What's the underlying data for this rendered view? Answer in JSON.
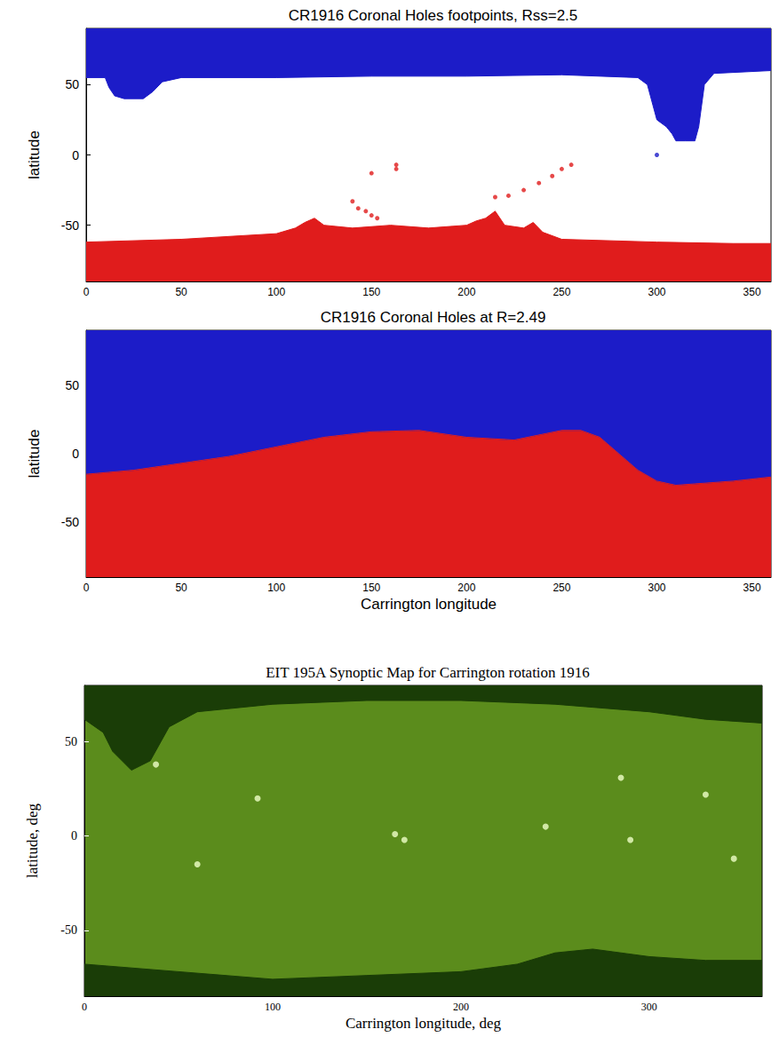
{
  "chart_data": [
    {
      "type": "area",
      "title": "CR1916 Coronal Holes footpoints, Rss=2.5",
      "ylabel": "latitude",
      "xlim": [
        0,
        360
      ],
      "xticks": [
        0,
        50,
        100,
        150,
        200,
        250,
        300,
        350
      ],
      "ylim": [
        -90,
        90
      ],
      "yticks": [
        -50,
        0,
        50
      ],
      "grid": false,
      "series": [
        {
          "type": "area",
          "color": "#1c1cc8",
          "x": [
            0,
            10,
            12,
            15,
            20,
            30,
            35,
            40,
            50,
            100,
            150,
            200,
            250,
            290,
            295,
            298,
            300,
            305,
            308,
            310,
            315,
            320,
            322,
            325,
            330,
            360
          ],
          "values": [
            55,
            55,
            48,
            42,
            40,
            40,
            45,
            52,
            55,
            55,
            56,
            56,
            57,
            55,
            50,
            35,
            25,
            20,
            15,
            10,
            10,
            10,
            20,
            50,
            58,
            60
          ]
        },
        {
          "type": "area",
          "color": "#e01c1c",
          "x": [
            0,
            50,
            100,
            110,
            115,
            120,
            125,
            140,
            160,
            180,
            200,
            205,
            210,
            215,
            220,
            230,
            235,
            240,
            250,
            300,
            340,
            360
          ],
          "values": [
            -62,
            -60,
            -56,
            -52,
            -48,
            -45,
            -50,
            -52,
            -50,
            -52,
            -50,
            -47,
            -45,
            -40,
            -50,
            -52,
            -48,
            -55,
            -60,
            -62,
            -63,
            -63
          ]
        },
        {
          "type": "scatter",
          "marker": "circle",
          "color": "#e01c1c",
          "x": [
            140,
            143,
            147,
            150,
            153,
            150,
            163,
            163,
            215,
            222,
            230,
            238,
            245,
            250,
            255
          ],
          "values": [
            -33,
            -38,
            -40,
            -43,
            -45,
            -13,
            -10,
            -7,
            -30,
            -29,
            -25,
            -20,
            -15,
            -10,
            -7
          ]
        },
        {
          "type": "scatter",
          "marker": "circle",
          "color": "#1c1cc8",
          "x": [
            300
          ],
          "values": [
            0
          ]
        }
      ]
    },
    {
      "type": "area",
      "title": "CR1916 Coronal Holes at R=2.49",
      "xlabel": "Carrington longitude",
      "ylabel": "latitude",
      "xlim": [
        0,
        360
      ],
      "xticks": [
        0,
        50,
        100,
        150,
        200,
        250,
        300,
        350
      ],
      "ylim": [
        -90,
        90
      ],
      "yticks": [
        -50,
        0,
        50
      ],
      "grid": false,
      "x": [
        0,
        25,
        50,
        75,
        100,
        125,
        150,
        175,
        200,
        225,
        250,
        260,
        270,
        280,
        290,
        300,
        310,
        320,
        340,
        360
      ],
      "series": [
        {
          "type": "area",
          "color": "#1c1cc8",
          "values": [
            -15,
            -12,
            -7,
            -2,
            5,
            12,
            16,
            17,
            12,
            10,
            17,
            17,
            12,
            0,
            -12,
            -20,
            -23,
            -22,
            -20,
            -17
          ]
        },
        {
          "type": "area",
          "color": "#e01c1c",
          "values": [
            -15,
            -12,
            -7,
            -2,
            5,
            12,
            16,
            17,
            12,
            10,
            17,
            17,
            12,
            0,
            -12,
            -20,
            -23,
            -22,
            -20,
            -17
          ]
        }
      ]
    },
    {
      "type": "area",
      "title": "EIT 195A Synoptic Map for Carrington rotation 1916",
      "xlabel": "Carrington longitude, deg",
      "ylabel": "latitude, deg",
      "xlim": [
        0,
        360
      ],
      "xticks": [
        0,
        100,
        200,
        300
      ],
      "ylim": [
        -85,
        80
      ],
      "yticks": [
        -50,
        0,
        50
      ],
      "grid": false,
      "color": "#5b8c1c",
      "series": [
        {
          "type": "area",
          "color": "#1a3d07",
          "x": [
            0,
            10,
            15,
            25,
            35,
            45,
            60,
            100,
            150,
            200,
            250,
            300,
            330,
            360
          ],
          "values": [
            62,
            55,
            45,
            35,
            40,
            58,
            66,
            70,
            72,
            72,
            70,
            66,
            62,
            60
          ]
        },
        {
          "type": "area",
          "color": "#1a3d07",
          "x": [
            0,
            50,
            100,
            150,
            200,
            230,
            250,
            270,
            300,
            330,
            360
          ],
          "values": [
            -68,
            -72,
            -76,
            -74,
            -72,
            -68,
            -62,
            -60,
            -64,
            -66,
            -66
          ]
        },
        {
          "type": "scatter",
          "marker": "circle",
          "color": "#efffc8",
          "x": [
            170,
            165,
            245,
            285,
            290,
            345,
            92,
            330,
            60,
            38
          ],
          "values": [
            -2,
            1,
            5,
            31,
            -2,
            -12,
            20,
            22,
            -15,
            38
          ]
        }
      ]
    }
  ]
}
